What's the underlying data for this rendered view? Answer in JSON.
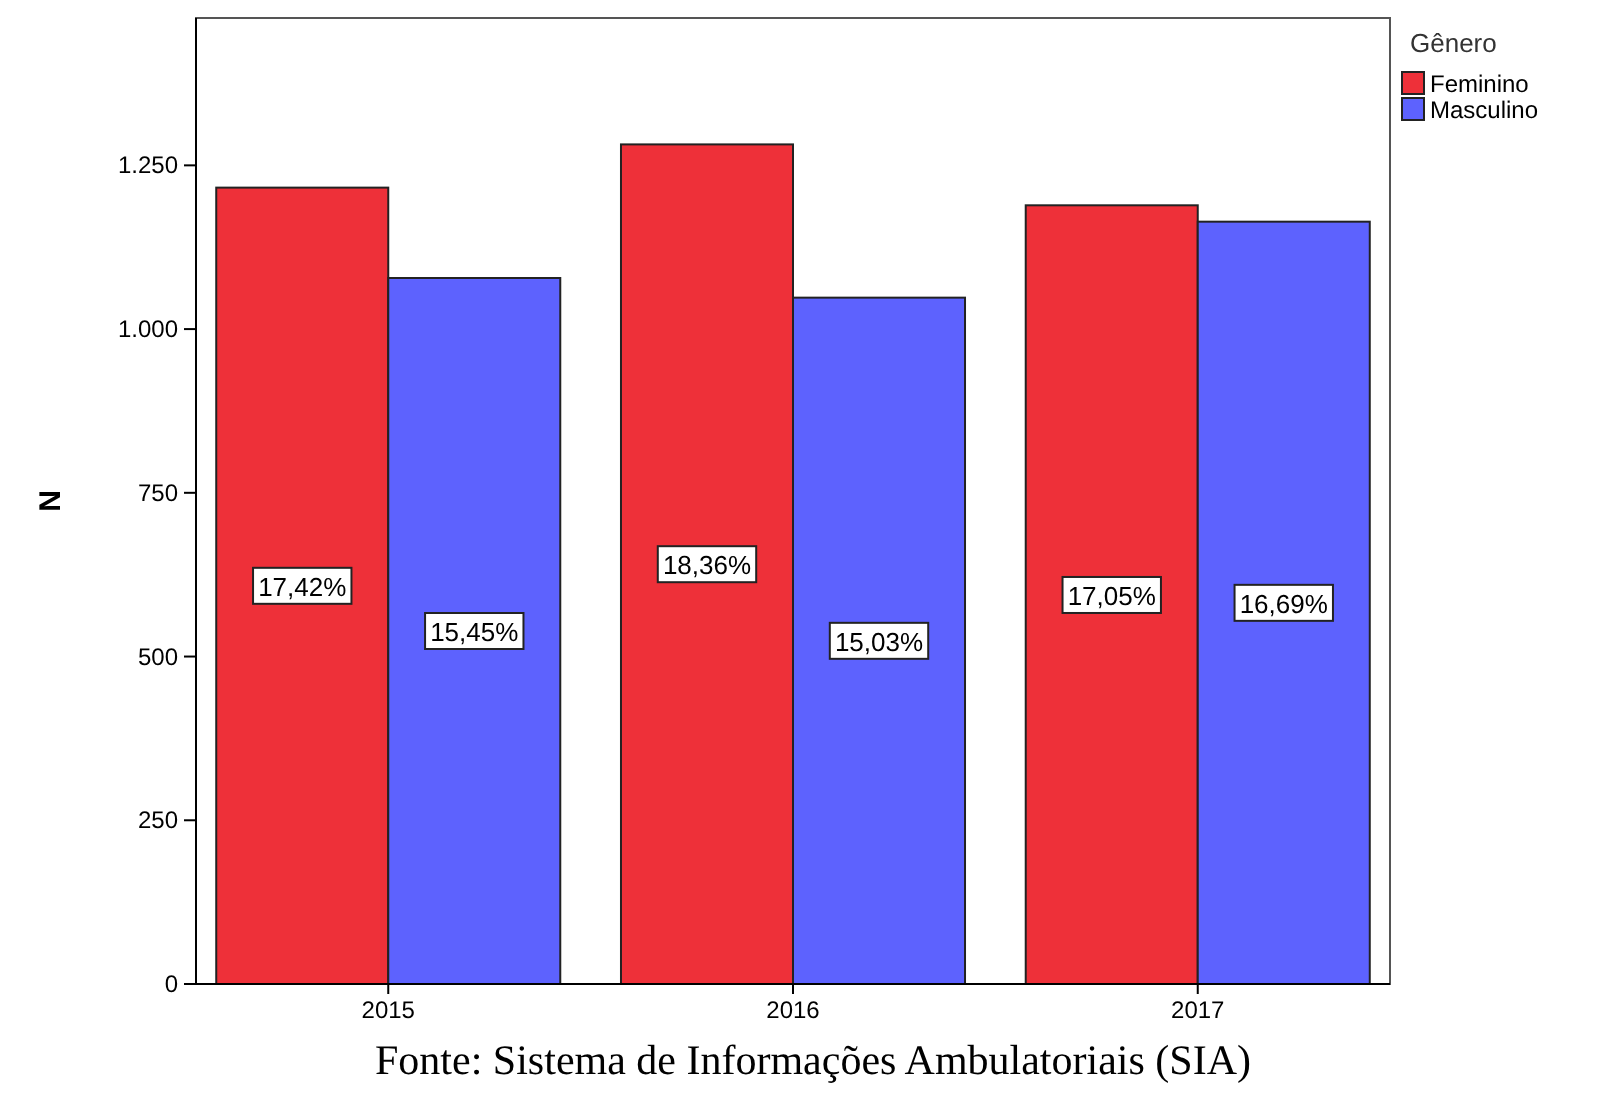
{
  "chart_data": {
    "type": "bar",
    "ylabel": "N",
    "legend_title": "Gênero",
    "legend": "top right",
    "categories": [
      "2015",
      "2016",
      "2017"
    ],
    "series": [
      {
        "name": "Feminino",
        "color": "#ee3039",
        "values": [
          1216,
          1282,
          1189
        ]
      },
      {
        "name": "Masculino",
        "color": "#5d62fe",
        "values": [
          1078,
          1048,
          1164
        ]
      }
    ],
    "ylim": [
      0,
      1475
    ],
    "yticks": [
      0,
      250,
      500,
      750,
      {
        "value": 1000,
        "label": "1.000"
      },
      {
        "value": 1250,
        "label": "1.250"
      }
    ],
    "annotations": [
      "Fonte: Sistema de Informações Ambulatoriais (SIA)",
      {
        "text": "17,42%",
        "x": "2015",
        "y": 608
      },
      {
        "text": "15,45%",
        "x": "2015",
        "y": 539
      },
      {
        "text": "18,36%",
        "x": "2016",
        "y": 641
      },
      {
        "text": "15,03%",
        "x": "2016",
        "y": 524
      },
      {
        "text": "17,05%",
        "x": "2017",
        "y": 594
      },
      {
        "text": "16,69%",
        "x": "2017",
        "y": 582
      }
    ]
  }
}
